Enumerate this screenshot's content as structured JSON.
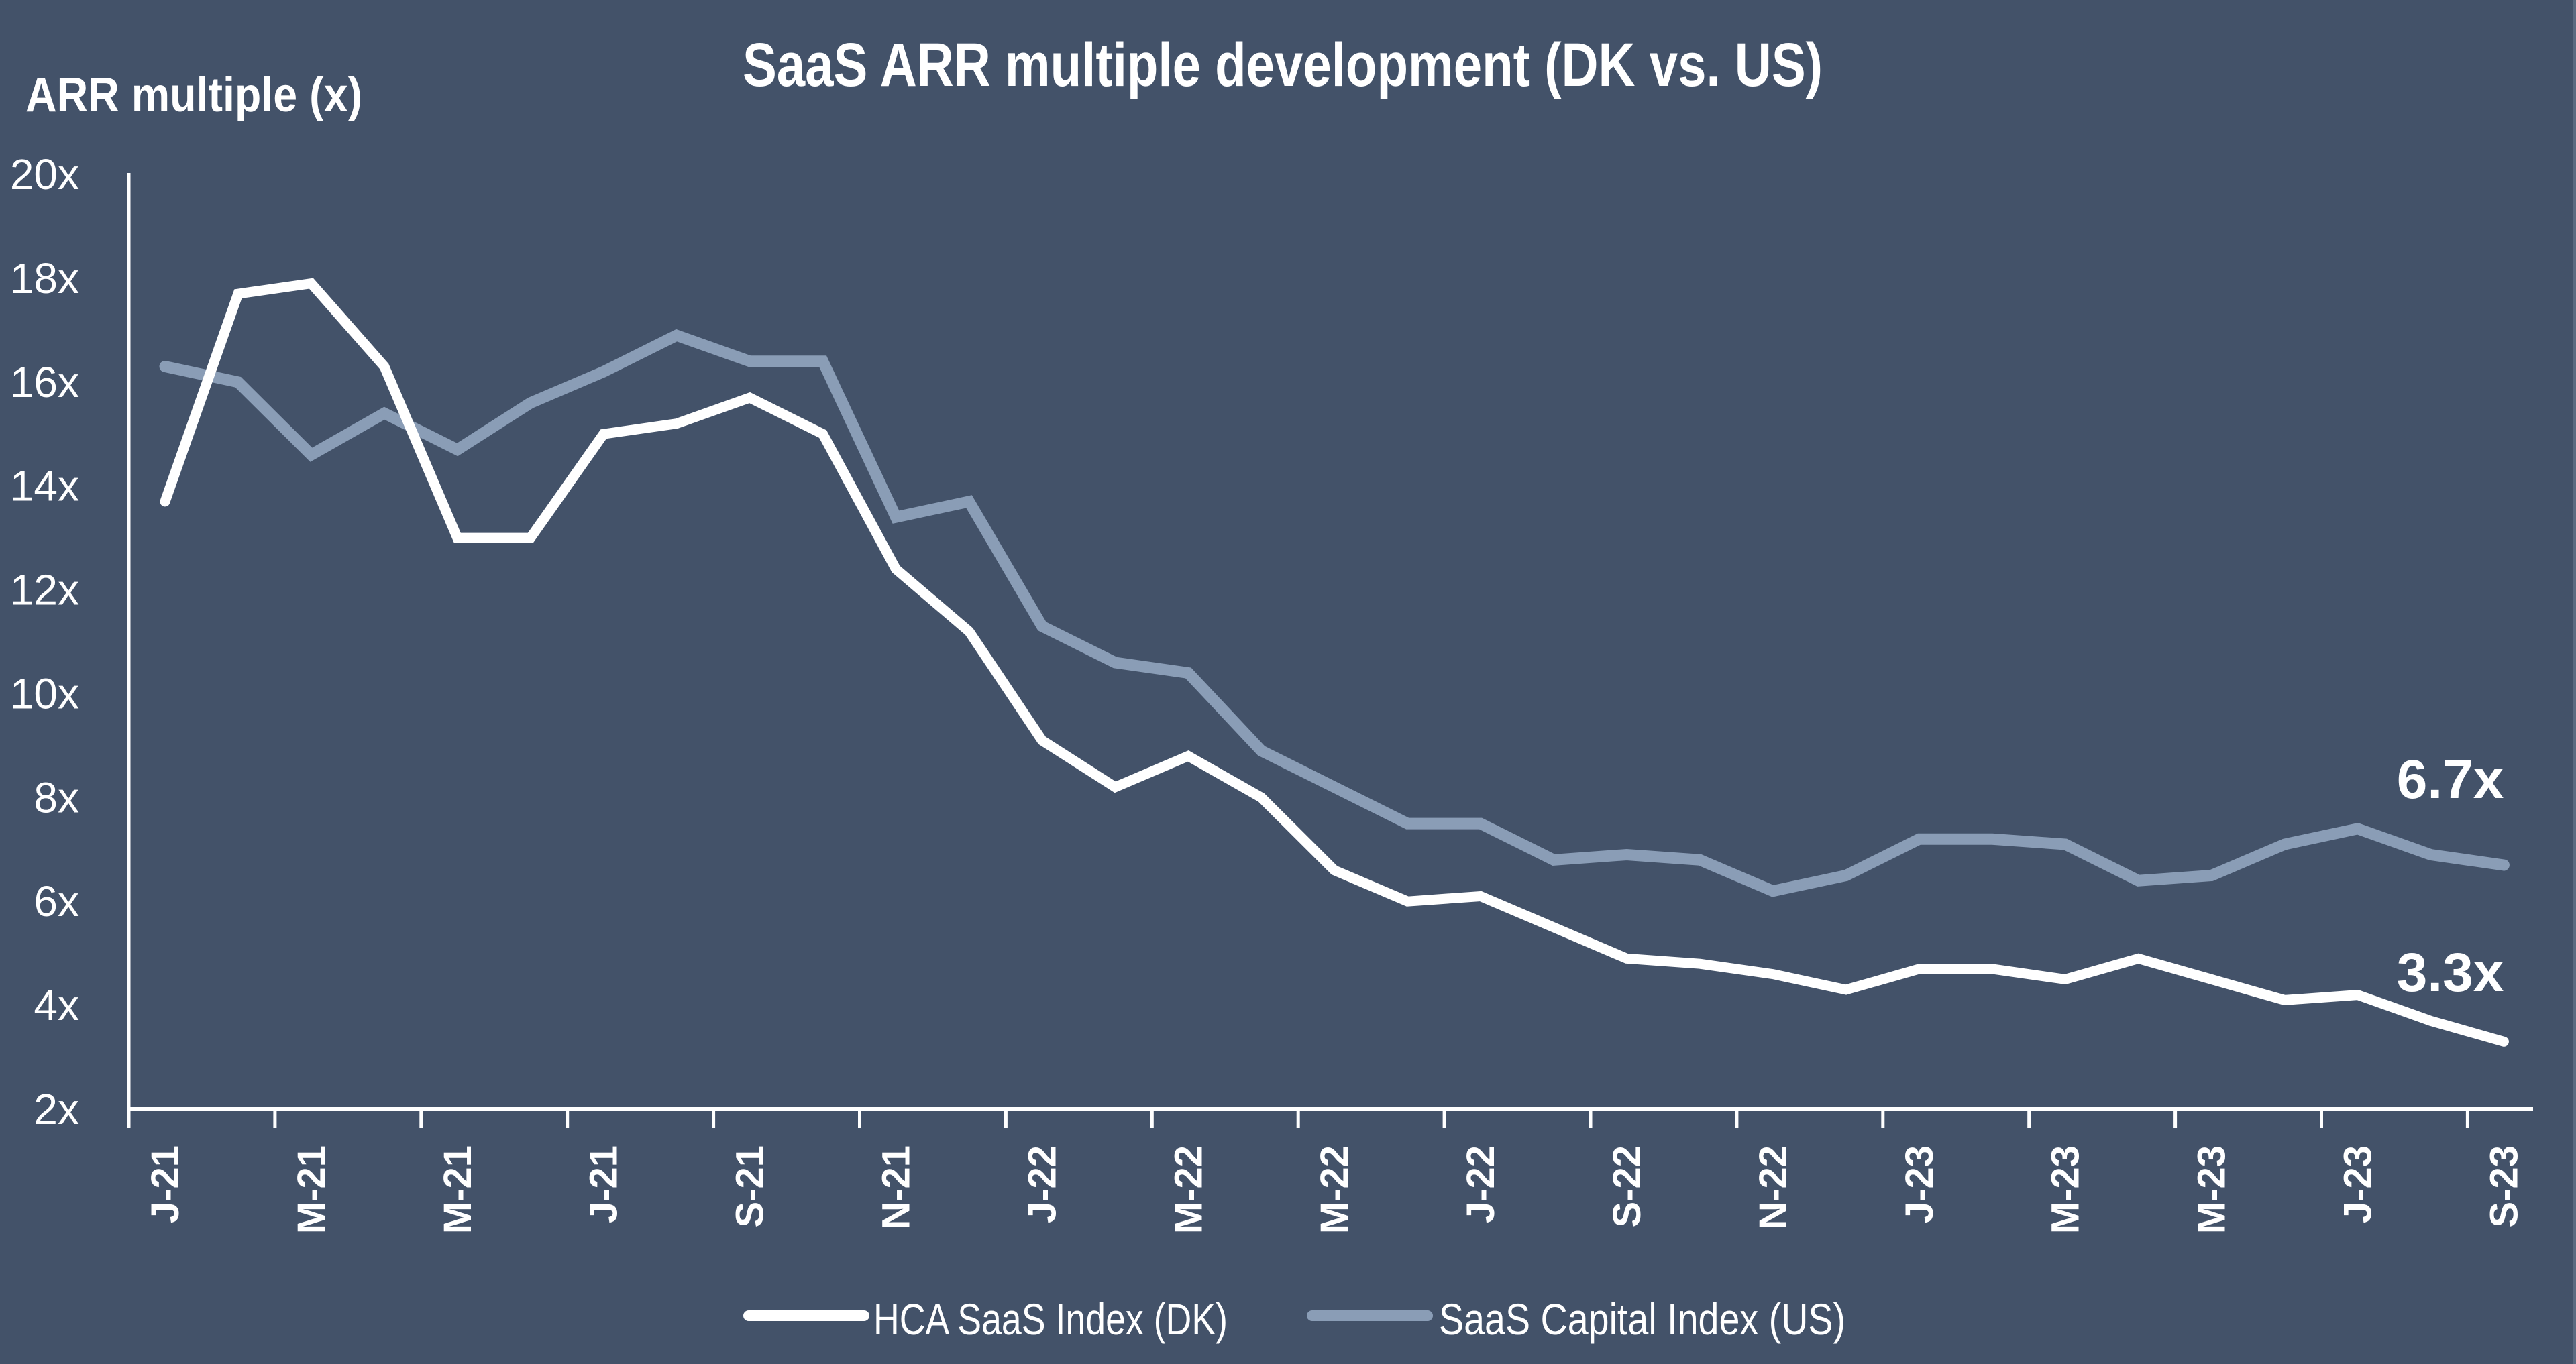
{
  "chart_data": {
    "type": "line",
    "title": "SaaS ARR multiple development (DK vs. US)",
    "xlabel": "",
    "ylabel": "ARR multiple (x)",
    "ylim": [
      2,
      20
    ],
    "yticks": [
      2,
      4,
      6,
      8,
      10,
      12,
      14,
      16,
      18,
      20
    ],
    "ytick_labels": [
      "2x",
      "4x",
      "6x",
      "8x",
      "10x",
      "12x",
      "14x",
      "16x",
      "18x",
      "20x"
    ],
    "grid": false,
    "legend_position": "bottom-center",
    "x": [
      "Jan-21",
      "Feb-21",
      "Mar-21",
      "Apr-21",
      "May-21",
      "Jun-21",
      "Jul-21",
      "Aug-21",
      "Sep-21",
      "Oct-21",
      "Nov-21",
      "Dec-21",
      "Jan-22",
      "Feb-22",
      "Mar-22",
      "Apr-22",
      "May-22",
      "Jun-22",
      "Jul-22",
      "Aug-22",
      "Sep-22",
      "Oct-22",
      "Nov-22",
      "Dec-22",
      "Jan-23",
      "Feb-23",
      "Mar-23",
      "Apr-23",
      "May-23",
      "Jun-23",
      "Jul-23",
      "Aug-23",
      "Sep-23"
    ],
    "xtick_labels": [
      "J-21",
      "M-21",
      "M-21",
      "J-21",
      "S-21",
      "N-21",
      "J-22",
      "M-22",
      "M-22",
      "J-22",
      "S-22",
      "N-22",
      "J-23",
      "M-23",
      "M-23",
      "J-23",
      "S-23"
    ],
    "xtick_label_every": 2,
    "series": [
      {
        "name": "HCA SaaS Index (DK)",
        "color": "#ffffff",
        "values": [
          13.7,
          17.7,
          17.9,
          16.3,
          13.0,
          13.0,
          15.0,
          15.2,
          15.7,
          15.0,
          12.4,
          11.2,
          9.1,
          8.2,
          8.8,
          8.0,
          6.6,
          6.0,
          6.1,
          5.5,
          4.9,
          4.8,
          4.6,
          4.3,
          4.7,
          4.7,
          4.5,
          4.9,
          4.5,
          4.1,
          4.2,
          3.7,
          3.3
        ],
        "end_label": "3.3x"
      },
      {
        "name": "SaaS Capital Index (US)",
        "color": "#8a9db6",
        "values": [
          16.3,
          16.0,
          14.6,
          15.4,
          14.7,
          15.6,
          16.2,
          16.9,
          16.4,
          16.4,
          13.4,
          13.7,
          11.3,
          10.6,
          10.4,
          8.9,
          8.2,
          7.5,
          7.5,
          6.8,
          6.9,
          6.8,
          6.2,
          6.5,
          7.2,
          7.2,
          7.1,
          6.4,
          6.5,
          7.1,
          7.4,
          6.9,
          6.7
        ],
        "end_label": "6.7x"
      }
    ],
    "colors": {
      "background": "#435269",
      "axis": "#ffffff",
      "text": "#ffffff"
    }
  }
}
